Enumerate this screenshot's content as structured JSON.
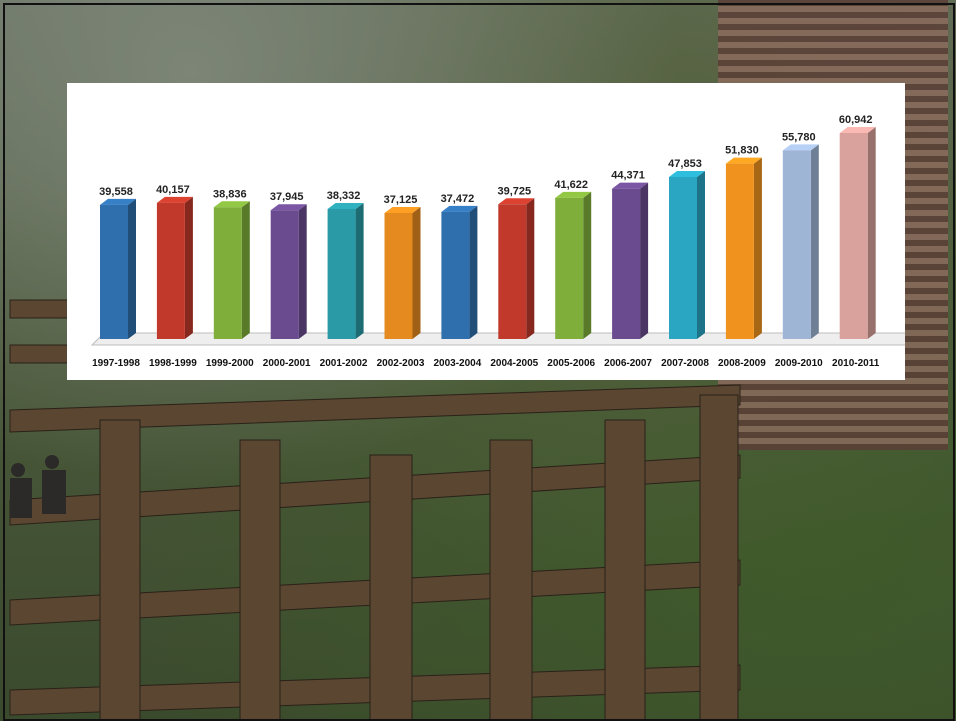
{
  "chart_data": {
    "type": "bar",
    "categories": [
      "1997-1998",
      "1998-1999",
      "1999-2000",
      "2000-2001",
      "2001-2002",
      "2002-2003",
      "2003-2004",
      "2004-2005",
      "2005-2006",
      "2006-2007",
      "2007-2008",
      "2008-2009",
      "2009-2010",
      "2010-2011"
    ],
    "values": [
      39558,
      40157,
      38836,
      37945,
      38332,
      37125,
      37472,
      39725,
      41622,
      44371,
      47853,
      51830,
      55780,
      60942
    ],
    "value_labels": [
      "39,558",
      "40,157",
      "38,836",
      "37,945",
      "38,332",
      "37,125",
      "37,472",
      "39,725",
      "41,622",
      "44,371",
      "47,853",
      "51,830",
      "55,780",
      "60,942"
    ],
    "colors": [
      "#2f6fad",
      "#c0392b",
      "#7fae3a",
      "#6a4b8f",
      "#2a9aa6",
      "#e58a1f",
      "#2f6fad",
      "#c0392b",
      "#7fae3a",
      "#6a4b8f",
      "#2aa5c2",
      "#f0931e",
      "#9fb5d6",
      "#d9a29c"
    ],
    "ylim": [
      0,
      62000
    ],
    "grid": false,
    "legend": "none",
    "style": "3d-bars"
  },
  "background": {
    "description_colors": {
      "foliage": "#3f5a2a",
      "steel": "#5a4632",
      "building": "#8a6a5c"
    }
  }
}
